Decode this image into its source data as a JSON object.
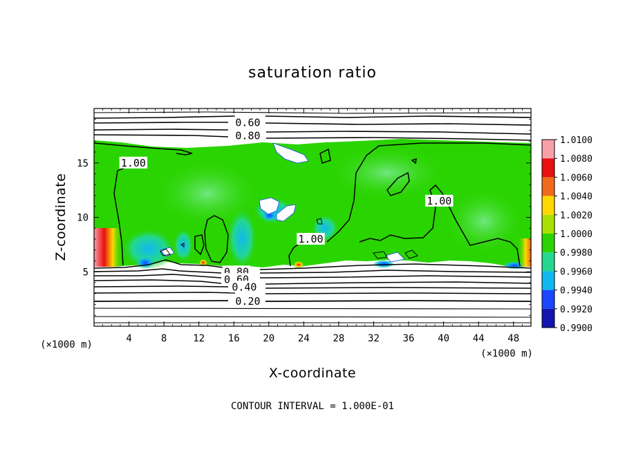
{
  "chart_data": {
    "type": "heatmap",
    "title": "saturation ratio",
    "xlabel": "X-coordinate",
    "ylabel": "Z-coordinate",
    "x_unit": "(×1000 m)",
    "z_unit": "(×1000 m)",
    "xlim": [
      0,
      50
    ],
    "ylim": [
      0,
      20
    ],
    "x_ticks": [
      4,
      8,
      12,
      16,
      20,
      24,
      28,
      32,
      36,
      40,
      44,
      48
    ],
    "y_ticks": [
      5,
      10,
      15
    ],
    "colorbar": {
      "levels": [
        "1.0100",
        "1.0080",
        "1.0060",
        "1.0040",
        "1.0020",
        "1.0000",
        "0.9980",
        "0.9960",
        "0.9940",
        "0.9920",
        "0.9900"
      ],
      "colors": [
        "#f7a0a8",
        "#e81010",
        "#f06a1a",
        "#ffd800",
        "#a8e000",
        "#2ad400",
        "#22d890",
        "#10b8f0",
        "#1a46ff",
        "#1414b0",
        "#6a1a90"
      ]
    },
    "contour_labels": [
      {
        "text": "0.60",
        "x": 17.6,
        "z": 18.7
      },
      {
        "text": "0.80",
        "x": 17.6,
        "z": 17.5
      },
      {
        "text": "1.00",
        "x": 4.5,
        "z": 15.0
      },
      {
        "text": "1.00",
        "x": 39.5,
        "z": 11.5
      },
      {
        "text": "1.00",
        "x": 24.8,
        "z": 8.0
      },
      {
        "text": "0.80",
        "x": 16.3,
        "z": 5.0
      },
      {
        "text": "0.60",
        "x": 16.3,
        "z": 4.3
      },
      {
        "text": "0.40",
        "x": 17.2,
        "z": 3.6
      },
      {
        "text": "0.20",
        "x": 17.6,
        "z": 2.3
      }
    ],
    "contour_interval_label": "CONTOUR INTERVAL = 1.000E-01"
  },
  "colors": {
    "field_main": "#2ad400",
    "field_light": "#5ae070",
    "cloud_free": "#ffffff",
    "edge_cyan": "#22d890",
    "edge_blue": "#1a46ff",
    "hot_red": "#e81010",
    "hot_orange": "#ffd800"
  }
}
